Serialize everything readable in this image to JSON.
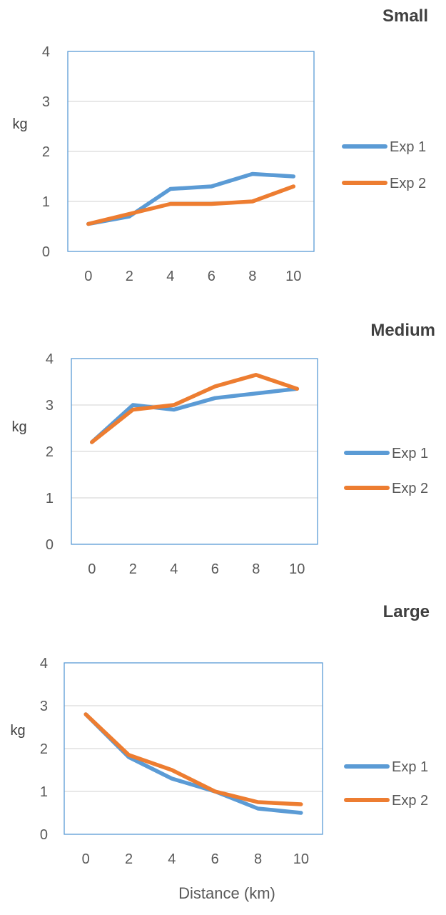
{
  "chart_data": [
    {
      "type": "line",
      "title": "Small",
      "ylabel": "kg",
      "xlabel": "",
      "x": [
        0,
        2,
        4,
        6,
        8,
        10
      ],
      "ylim": [
        0,
        4
      ],
      "yticks": [
        0,
        1,
        2,
        3,
        4
      ],
      "grid": true,
      "legend": "right",
      "series": [
        {
          "name": "Exp 1",
          "color": "#5B9BD5",
          "values": [
            0.55,
            0.7,
            1.25,
            1.3,
            1.55,
            1.5
          ]
        },
        {
          "name": "Exp 2",
          "color": "#ED7D31",
          "values": [
            0.55,
            0.75,
            0.95,
            0.95,
            1.0,
            1.3
          ]
        }
      ]
    },
    {
      "type": "line",
      "title": "Medium",
      "ylabel": "kg",
      "xlabel": "",
      "x": [
        0,
        2,
        4,
        6,
        8,
        10
      ],
      "ylim": [
        0,
        4
      ],
      "yticks": [
        0,
        1,
        2,
        3,
        4
      ],
      "grid": true,
      "legend": "right",
      "series": [
        {
          "name": "Exp 1",
          "color": "#5B9BD5",
          "values": [
            2.2,
            3.0,
            2.9,
            3.15,
            3.25,
            3.35
          ]
        },
        {
          "name": "Exp 2",
          "color": "#ED7D31",
          "values": [
            2.2,
            2.9,
            3.0,
            3.4,
            3.65,
            3.35
          ]
        }
      ]
    },
    {
      "type": "line",
      "title": "Large",
      "ylabel": "kg",
      "xlabel": "Distance (km)",
      "x": [
        0,
        2,
        4,
        6,
        8,
        10
      ],
      "ylim": [
        0,
        4
      ],
      "yticks": [
        0,
        1,
        2,
        3,
        4
      ],
      "grid": true,
      "legend": "right",
      "series": [
        {
          "name": "Exp 1",
          "color": "#5B9BD5",
          "values": [
            2.8,
            1.8,
            1.3,
            1.0,
            0.6,
            0.5
          ]
        },
        {
          "name": "Exp 2",
          "color": "#ED7D31",
          "values": [
            2.8,
            1.85,
            1.5,
            1.0,
            0.75,
            0.7
          ]
        }
      ]
    }
  ]
}
